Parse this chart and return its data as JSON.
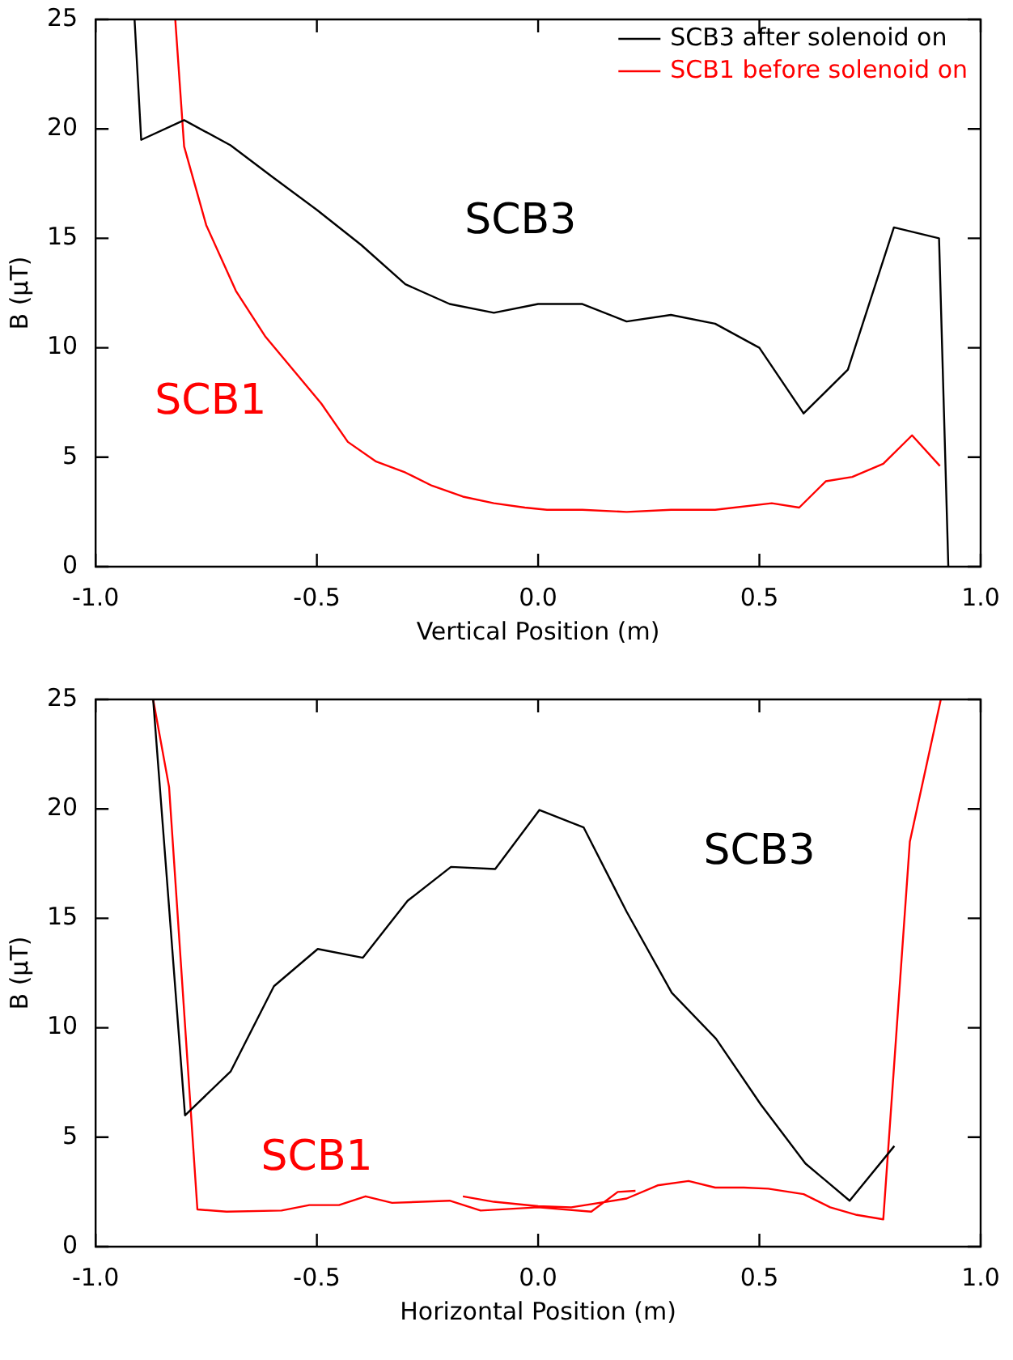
{
  "chart_data": [
    {
      "type": "line",
      "xlabel": "Vertical Position (m)",
      "ylabel": "B (μT)",
      "xlim": [
        -1,
        1
      ],
      "ylim": [
        0,
        25
      ],
      "xticks": [
        {
          "value": -1,
          "label": "-1.0"
        },
        {
          "value": -0.5,
          "label": "-0.5"
        },
        {
          "value": 0,
          "label": "0.0"
        },
        {
          "value": 0.5,
          "label": "0.5"
        },
        {
          "value": 1,
          "label": "1.0"
        }
      ],
      "yticks": [
        0,
        5,
        10,
        15,
        20,
        25
      ],
      "grid": false,
      "legend": "top right",
      "line_style": "solid",
      "marker": "none",
      "series": [
        {
          "name": "SCB3 after solenoid on",
          "color": "#000000",
          "x": [
            -0.912,
            -0.897,
            -0.8,
            -0.695,
            -0.6,
            -0.5,
            -0.4,
            -0.3,
            -0.2,
            -0.1,
            0,
            0.1,
            0.2,
            0.3,
            0.4,
            0.5,
            0.6,
            0.7,
            0.804,
            0.906,
            0.927
          ],
          "values": [
            25,
            19.5,
            20.4,
            19.25,
            17.8,
            16.3,
            14.7,
            12.9,
            12.0,
            11.6,
            12.0,
            12.0,
            11.2,
            11.5,
            11.1,
            10.0,
            7.0,
            9.0,
            15.5,
            15.0,
            0
          ]
        },
        {
          "name": "SCB1 before solenoid on",
          "color": "#ff0000",
          "x": [
            -0.82,
            -0.8,
            -0.75,
            -0.683,
            -0.616,
            -0.49,
            -0.43,
            -0.366,
            -0.3,
            -0.24,
            -0.17,
            -0.1,
            -0.03,
            0.02,
            0.1,
            0.2,
            0.3,
            0.4,
            0.528,
            0.59,
            0.65,
            0.71,
            0.78,
            0.845,
            0.908
          ],
          "values": [
            25,
            19.2,
            15.6,
            12.6,
            10.5,
            7.45,
            5.7,
            4.8,
            4.3,
            3.7,
            3.2,
            2.9,
            2.7,
            2.6,
            2.6,
            2.5,
            2.6,
            2.6,
            2.9,
            2.7,
            3.9,
            4.1,
            4.7,
            6.0,
            4.6
          ]
        }
      ],
      "annotations": [
        "SCB3",
        "SCB1"
      ]
    },
    {
      "type": "line",
      "xlabel": "Horizontal Position (m)",
      "ylabel": "B (μT)",
      "xlim": [
        -1,
        1
      ],
      "ylim": [
        0,
        25
      ],
      "xticks": [
        {
          "value": -1,
          "label": "-1.0"
        },
        {
          "value": -0.5,
          "label": "-0.5"
        },
        {
          "value": 0,
          "label": "0.0"
        },
        {
          "value": 0.5,
          "label": "0.5"
        },
        {
          "value": 1,
          "label": "1.0"
        }
      ],
      "yticks": [
        0,
        5,
        10,
        15,
        20,
        25
      ],
      "grid": false,
      "line_style": "solid",
      "marker": "none",
      "series": [
        {
          "color": "#000000",
          "x": [
            -0.87,
            -0.798,
            -0.695,
            -0.597,
            -0.498,
            -0.396,
            -0.295,
            -0.197,
            -0.097,
            0.003,
            0.103,
            0.2,
            0.302,
            0.402,
            0.503,
            0.604,
            0.704,
            0.805
          ],
          "values": [
            25,
            6.0,
            8.0,
            11.9,
            13.6,
            13.2,
            15.8,
            17.35,
            17.25,
            19.95,
            19.15,
            15.3,
            11.6,
            9.5,
            6.5,
            3.8,
            2.1,
            4.6
          ]
        },
        {
          "color": "#ff0000",
          "x": [
            -0.87,
            -0.834,
            -0.77,
            -0.704,
            -0.58,
            -0.517,
            -0.45,
            -0.39,
            -0.33,
            -0.2,
            -0.13,
            0,
            0.12,
            0.18,
            0.22,
            null,
            -0.17,
            -0.1,
            0,
            0.075,
            0.2,
            0.27,
            0.34,
            0.4,
            0.465,
            0.52,
            0.6,
            0.66,
            0.72,
            0.78,
            0.84,
            0.91
          ],
          "values": [
            25,
            21.0,
            1.7,
            1.6,
            1.65,
            1.9,
            1.9,
            2.3,
            2.0,
            2.1,
            1.65,
            1.8,
            1.6,
            2.5,
            2.55,
            null,
            2.3,
            2.05,
            1.85,
            1.8,
            2.2,
            2.8,
            3.0,
            2.7,
            2.7,
            2.65,
            2.4,
            1.8,
            1.45,
            1.25,
            18.5,
            25
          ]
        }
      ],
      "annotations": [
        "SCB3",
        "SCB1"
      ]
    }
  ]
}
